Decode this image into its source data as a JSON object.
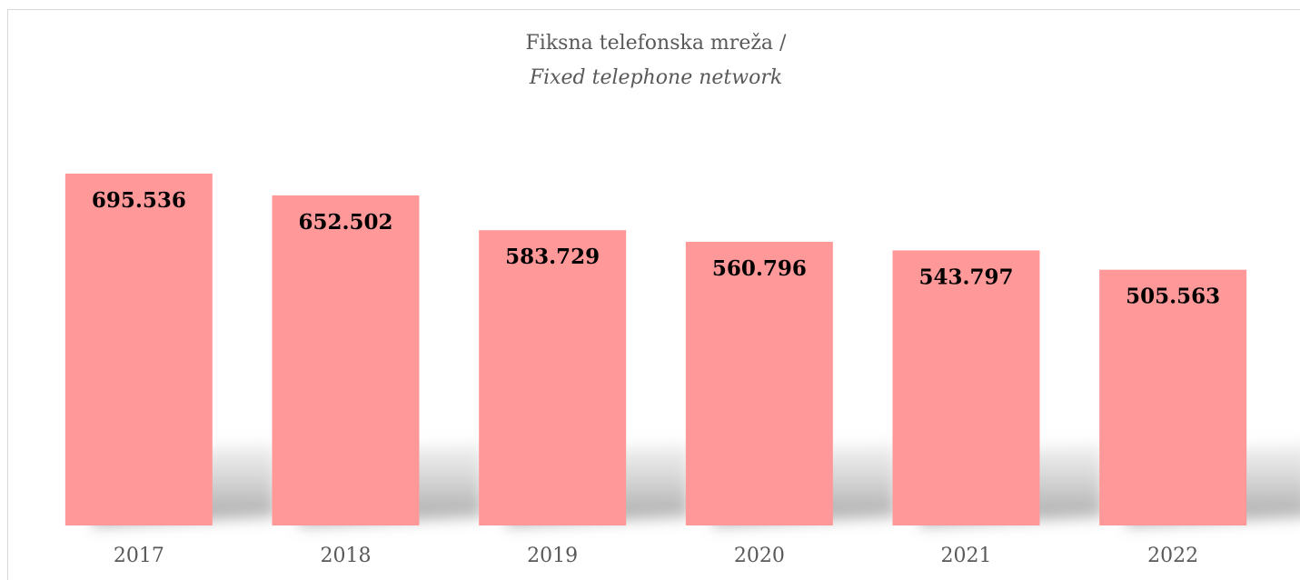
{
  "chart_data": {
    "type": "bar",
    "title": "Fiksna telefonska mreža /",
    "subtitle": "Fixed telephone network",
    "categories": [
      "2017",
      "2018",
      "2019",
      "2020",
      "2021",
      "2022"
    ],
    "values": [
      695536,
      652502,
      583729,
      560796,
      543797,
      505563
    ],
    "value_labels": [
      "695.536",
      "652.502",
      "583.729",
      "560.796",
      "543.797",
      "505.563"
    ],
    "color": "#ff9999"
  }
}
